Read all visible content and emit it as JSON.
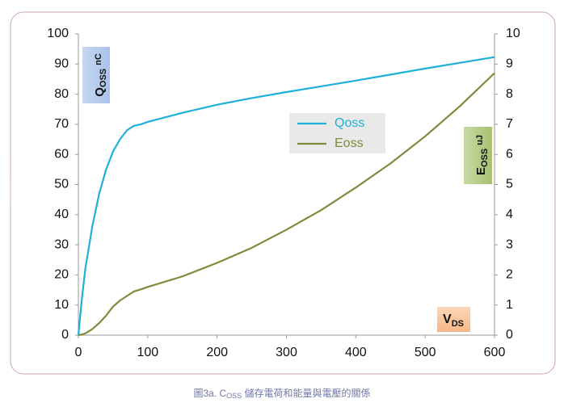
{
  "chart_data": {
    "type": "line",
    "x": [
      0,
      5,
      10,
      20,
      30,
      40,
      50,
      60,
      70,
      80,
      90,
      100,
      150,
      200,
      250,
      300,
      350,
      400,
      450,
      500,
      550,
      600
    ],
    "series": [
      {
        "name": "Qoss",
        "color": "#1eb0d8",
        "values": [
          0,
          12,
          22,
          36,
          47,
          55,
          61,
          65,
          68,
          69.5,
          70,
          70.8,
          73.8,
          76.5,
          78.7,
          80.7,
          82.6,
          84.5,
          86.5,
          88.5,
          90.4,
          92.3
        ]
      },
      {
        "name": "Eoss",
        "color": "#7a8d3c",
        "axis": "y2",
        "values": [
          0,
          0.02,
          0.06,
          0.2,
          0.4,
          0.65,
          0.95,
          1.15,
          1.3,
          1.45,
          1.52,
          1.6,
          1.95,
          2.4,
          2.9,
          3.5,
          4.15,
          4.9,
          5.7,
          6.6,
          7.6,
          8.7
        ]
      }
    ],
    "xlim": [
      0,
      600
    ],
    "xticks": [
      0,
      100,
      200,
      300,
      400,
      500,
      600
    ],
    "ylim": [
      0,
      100
    ],
    "yticks": [
      0,
      10,
      20,
      30,
      40,
      50,
      60,
      70,
      80,
      90,
      100
    ],
    "y2lim": [
      0,
      10
    ],
    "y2ticks": [
      0,
      1,
      2,
      3,
      4,
      5,
      6,
      7,
      8,
      9,
      10
    ],
    "y_label": "Q",
    "y_label_sub": "OSS",
    "y_label_unit": "nC",
    "y2_label": "E",
    "y2_label_sub": "OSS",
    "y2_label_unit": "uJ",
    "x_label": "V",
    "x_label_sub": "DS",
    "caption": "圖3a. C",
    "caption_sub": "OSS",
    "caption_rest": " 儲存電荷和能量與電壓的關係",
    "grid": false
  }
}
